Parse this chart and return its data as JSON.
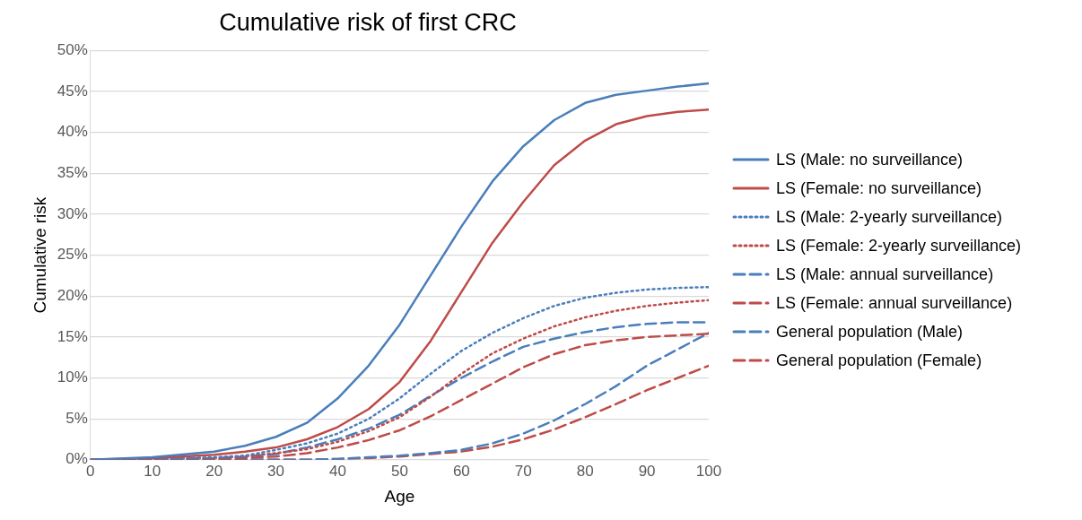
{
  "chart_data": {
    "type": "line",
    "title": "Cumulative risk of first CRC",
    "xlabel": "Age",
    "ylabel": "Cumulative risk",
    "x": [
      0,
      10,
      20,
      25,
      30,
      35,
      40,
      45,
      50,
      55,
      60,
      65,
      70,
      75,
      80,
      85,
      90,
      95,
      100
    ],
    "xlim": [
      0,
      100
    ],
    "xticks": [
      0,
      10,
      20,
      30,
      40,
      50,
      60,
      70,
      80,
      90,
      100
    ],
    "ylim": [
      0,
      50
    ],
    "yticks": [
      {
        "value": 0,
        "label": "0%"
      },
      {
        "value": 5,
        "label": "5%"
      },
      {
        "value": 10,
        "label": "10%"
      },
      {
        "value": 15,
        "label": "15%"
      },
      {
        "value": 20,
        "label": "20%"
      },
      {
        "value": 25,
        "label": "25%"
      },
      {
        "value": 30,
        "label": "30%"
      },
      {
        "value": 35,
        "label": "35%"
      },
      {
        "value": 40,
        "label": "40%"
      },
      {
        "value": 45,
        "label": "45%"
      },
      {
        "value": 50,
        "label": "50%"
      }
    ],
    "grid": "y",
    "legend": "right",
    "marker": "none",
    "series": [
      {
        "name": "LS (Male: no surveillance)",
        "color": "#4a7ebb",
        "line_style": "solid",
        "values": [
          0,
          0.3,
          1.0,
          1.7,
          2.8,
          4.5,
          7.5,
          11.5,
          16.5,
          22.5,
          28.5,
          34,
          38.3,
          41.5,
          43.6,
          44.6,
          45.1,
          45.6,
          46.0
        ]
      },
      {
        "name": "LS (Female: no surveillance)",
        "color": "#be4b48",
        "line_style": "solid",
        "values": [
          0,
          0.2,
          0.6,
          1.0,
          1.5,
          2.5,
          4.0,
          6.2,
          9.5,
          14.5,
          20.5,
          26.5,
          31.5,
          36,
          39,
          41,
          42,
          42.5,
          42.8
        ]
      },
      {
        "name": "LS (Male: 2-yearly surveillance)",
        "color": "#4a7ebb",
        "line_style": "dotted",
        "values": [
          0,
          0.1,
          0.3,
          0.5,
          1.2,
          2.0,
          3.2,
          5.0,
          7.5,
          10.5,
          13.3,
          15.5,
          17.3,
          18.8,
          19.8,
          20.4,
          20.8,
          21.0,
          21.1
        ]
      },
      {
        "name": "LS (Female: 2-yearly surveillance)",
        "color": "#be4b48",
        "line_style": "dotted",
        "values": [
          0,
          0.1,
          0.2,
          0.4,
          0.8,
          1.3,
          2.2,
          3.5,
          5.2,
          7.7,
          10.5,
          13.0,
          14.8,
          16.3,
          17.4,
          18.2,
          18.8,
          19.2,
          19.5
        ]
      },
      {
        "name": "LS (Male: annual surveillance)",
        "color": "#4a7ebb",
        "line_style": "dashed",
        "values": [
          0,
          0.1,
          0.2,
          0.4,
          0.7,
          1.5,
          2.5,
          3.8,
          5.5,
          7.8,
          10.0,
          12.0,
          13.8,
          14.8,
          15.6,
          16.2,
          16.6,
          16.8,
          16.8
        ]
      },
      {
        "name": "LS (Female: annual surveillance)",
        "color": "#be4b48",
        "line_style": "dashed",
        "values": [
          0,
          0.1,
          0.1,
          0.2,
          0.4,
          0.8,
          1.5,
          2.4,
          3.6,
          5.3,
          7.3,
          9.3,
          11.3,
          12.9,
          14.0,
          14.6,
          15.0,
          15.2,
          15.4
        ]
      },
      {
        "name": "General population (Male)",
        "color": "#4a7ebb",
        "line_style": "dashed",
        "values": [
          0,
          0,
          0,
          0,
          0,
          0,
          0.1,
          0.3,
          0.5,
          0.8,
          1.2,
          2.0,
          3.2,
          4.8,
          6.8,
          9.0,
          11.5,
          13.5,
          15.5
        ]
      },
      {
        "name": "General population (Female)",
        "color": "#be4b48",
        "line_style": "dashed",
        "values": [
          0,
          0,
          0,
          0,
          0,
          0,
          0.1,
          0.2,
          0.4,
          0.7,
          1.0,
          1.6,
          2.5,
          3.7,
          5.2,
          6.8,
          8.5,
          10.0,
          11.5
        ]
      }
    ]
  }
}
